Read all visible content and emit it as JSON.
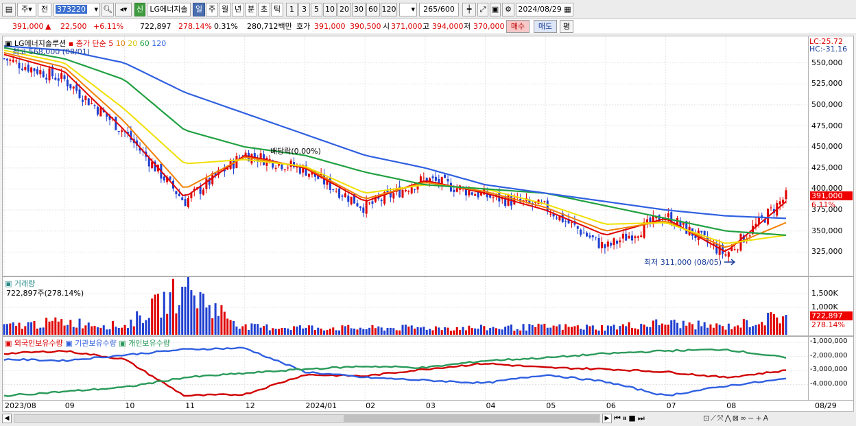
{
  "toolbar": {
    "type_label": "주",
    "range_label": "전",
    "code": "373220",
    "badge": "신",
    "name": "LG에너지솔",
    "periods": [
      "일",
      "주",
      "월",
      "년",
      "분",
      "초",
      "틱"
    ],
    "minutes": [
      "1",
      "3",
      "5",
      "10",
      "20",
      "30",
      "60",
      "120"
    ],
    "count": "265",
    "count_total": "/600",
    "date": "2024/08/29"
  },
  "quote": {
    "price": "391,000",
    "arrow": "▲",
    "change": "22,500",
    "change_pct": "+6.11%",
    "volume": "722,897",
    "volume_pct": "278.14%",
    "turnover_pct": "0.31%",
    "amount": "280,712백만",
    "ask_label": "호가",
    "ask": "391,000",
    "bid": "390,500",
    "open_label": "시",
    "open": "371,000",
    "high_label": "고",
    "high": "394,000",
    "low_label": "저",
    "low": "370,000",
    "buy": "매수",
    "sell": "매도",
    "eval": "평"
  },
  "price_pane": {
    "legend_name": "LG에너지솔루션",
    "legend_ma": "종가 단순",
    "ma_periods": [
      "5",
      "10",
      "20",
      "60",
      "120"
    ],
    "highest_label": "최고 568,000 (08/01)",
    "lowest_label": "최저 311,000 (08/05)",
    "dividend_label": "배당락(0.00%)",
    "lc": "LC:25.72",
    "hc": "HC:-31.16",
    "current_price": "391,000",
    "current_pct": "6.11%"
  },
  "volume_pane": {
    "title": "거래량",
    "summary": "722,897주(278.14%)",
    "current": "722,897",
    "current_pct": "278.14%"
  },
  "holdings_pane": {
    "legend": [
      "외국인보유수량",
      "기관보유수량",
      "개인보유수량"
    ]
  },
  "x_axis_labels": [
    "2023/08",
    "09",
    "10",
    "11",
    "12",
    "2024/01",
    "02",
    "03",
    "04",
    "05",
    "06",
    "07",
    "08"
  ],
  "x_axis_right": "08/29",
  "colors": {
    "up": "#e00000",
    "down": "#1f3fd0",
    "ma5": "#e00000",
    "ma10": "#f08000",
    "ma20": "#f0e000",
    "ma60": "#20a040",
    "ma120": "#3060e0",
    "foreign": "#d00000",
    "institution": "#2f5fe0",
    "individual": "#2a9a5a"
  },
  "chart_data": [
    {
      "type": "line",
      "title": "",
      "note": "",
      "x": [
        "2023/08",
        "09",
        "10",
        "11",
        "12",
        "2024/01",
        "02",
        "03",
        "04",
        "05",
        "06",
        "07",
        "08",
        "08/29"
      ],
      "ylim": [
        300000,
        575000
      ],
      "yticks": [
        325000,
        350000,
        375000,
        400000,
        425000,
        450000,
        475000,
        500000,
        525000,
        550000
      ],
      "ytick_labels": [
        "325,000",
        "350,000",
        "375,000",
        "400,000",
        "425,000",
        "450,000",
        "475,000",
        "500,000",
        "525,000",
        "550,000"
      ],
      "series": [
        {
          "name": "5",
          "values": [
            560000,
            540000,
            470000,
            390000,
            440000,
            425000,
            385000,
            410000,
            395000,
            375000,
            345000,
            365000,
            325000,
            385000
          ]
        },
        {
          "name": "10",
          "values": [
            562000,
            545000,
            480000,
            400000,
            438000,
            426000,
            388000,
            408000,
            397000,
            378000,
            350000,
            362000,
            330000,
            360000
          ]
        },
        {
          "name": "20",
          "values": [
            565000,
            550000,
            495000,
            430000,
            435000,
            427000,
            395000,
            405000,
            400000,
            382000,
            358000,
            360000,
            335000,
            345000
          ]
        },
        {
          "name": "60",
          "values": [
            568000,
            555000,
            530000,
            470000,
            450000,
            440000,
            420000,
            405000,
            400000,
            395000,
            380000,
            365000,
            350000,
            345000
          ]
        },
        {
          "name": "120",
          "values": [
            570000,
            565000,
            550000,
            515000,
            490000,
            465000,
            440000,
            425000,
            405000,
            395000,
            385000,
            375000,
            368000,
            365000
          ]
        }
      ],
      "close": [
        555000,
        530000,
        468000,
        385000,
        442000,
        423000,
        378000,
        412000,
        392000,
        378000,
        330000,
        368000,
        322000,
        391000
      ]
    },
    {
      "type": "bar",
      "title": "거래량",
      "ylim": [
        0,
        2000000
      ],
      "yticks": [
        1000000,
        1500000
      ],
      "ytick_labels": [
        "1,000K",
        "1,500K"
      ],
      "categories": [
        "2023/08",
        "09",
        "10",
        "11",
        "12",
        "2024/01",
        "02",
        "03",
        "04",
        "05",
        "06",
        "07",
        "08",
        "08/29"
      ],
      "values": [
        320000,
        500000,
        330000,
        1750000,
        300000,
        280000,
        250000,
        270000,
        260000,
        300000,
        280000,
        450000,
        300000,
        722897
      ]
    },
    {
      "type": "line",
      "title": "",
      "ylim": [
        -5000000,
        -800000
      ],
      "yticks": [
        -1000000,
        -2000000,
        -3000000,
        -4000000
      ],
      "ytick_labels": [
        "-1,000,000",
        "-2,000,000",
        "-3,000,000",
        "-4,000,000"
      ],
      "x": [
        "2023/08",
        "09",
        "10",
        "11",
        "12",
        "2024/01",
        "02",
        "03",
        "04",
        "05",
        "06",
        "07",
        "08",
        "08/29"
      ],
      "series": [
        {
          "name": "외국인보유수량",
          "values": [
            -1800000,
            -1600000,
            -2200000,
            -4800000,
            -4700000,
            -3300000,
            -3400000,
            -2900000,
            -2500000,
            -2800000,
            -2900000,
            -3100000,
            -3500000,
            -3000000
          ]
        },
        {
          "name": "기관보유수량",
          "values": [
            -2200000,
            -2300000,
            -1900000,
            -1500000,
            -1400000,
            -3100000,
            -3500000,
            -3700000,
            -3900000,
            -3300000,
            -3800000,
            -4800000,
            -4100000,
            -3600000
          ]
        },
        {
          "name": "개인보유수량",
          "values": [
            -4800000,
            -4500000,
            -4200000,
            -3500000,
            -3200000,
            -2900000,
            -2700000,
            -2800000,
            -2300000,
            -2100000,
            -1800000,
            -1600000,
            -1500000,
            -2100000
          ]
        }
      ]
    }
  ]
}
